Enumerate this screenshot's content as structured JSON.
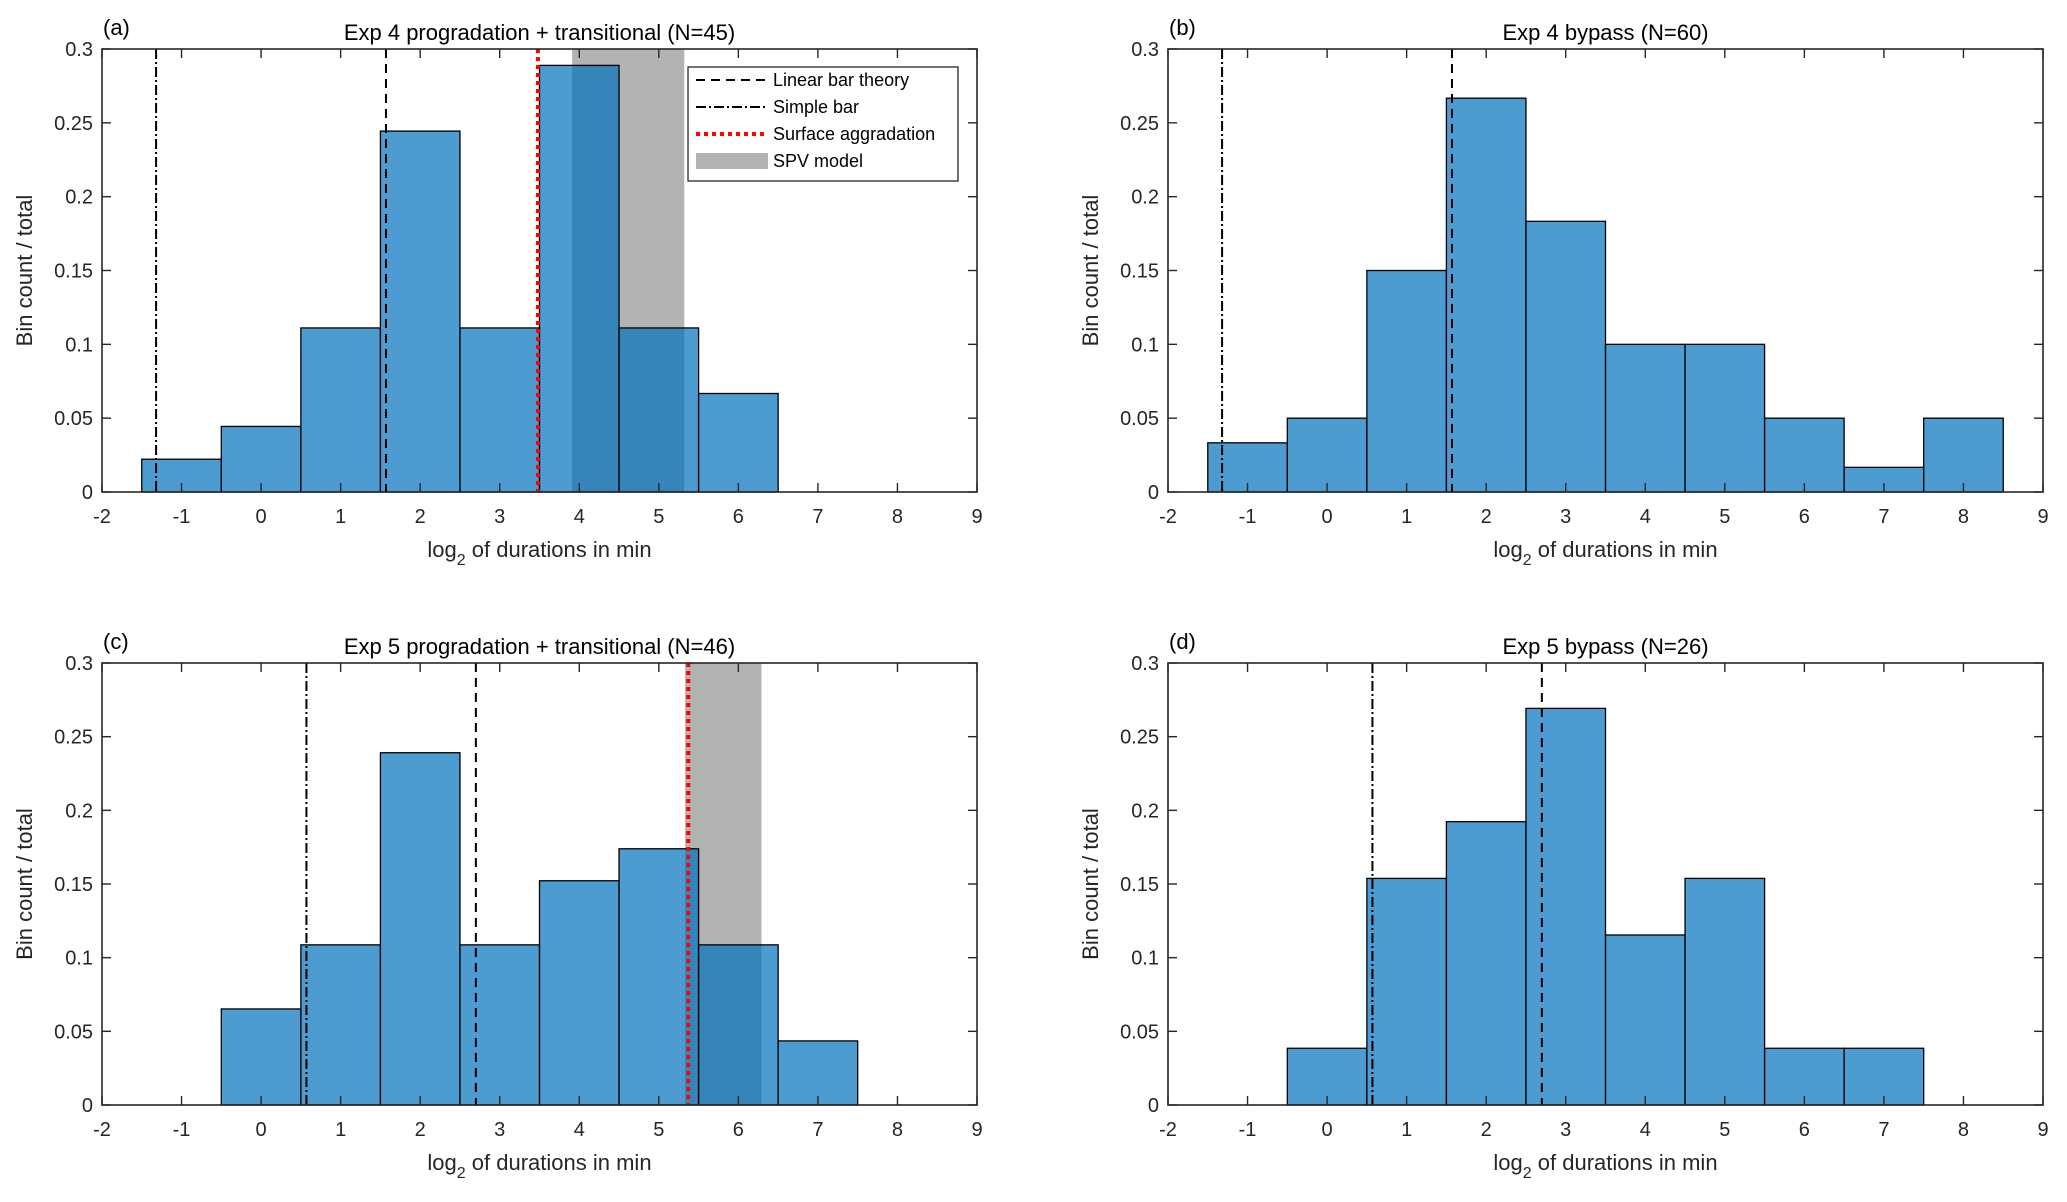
{
  "chart_data": [
    {
      "type": "bar",
      "panel_label": "(a)",
      "title": "Exp 4 progradation + transitional (N=45)",
      "xlabel_main": "log",
      "xlabel_sub": "2",
      "xlabel_rest": " of durations in min",
      "ylabel": "Bin count / total",
      "xlim": [
        -2,
        9
      ],
      "ylim": [
        0,
        0.3
      ],
      "xticks": [
        "-2",
        "-1",
        "0",
        "1",
        "2",
        "3",
        "4",
        "5",
        "6",
        "7",
        "8",
        "9"
      ],
      "yticks": [
        "0",
        "0.05",
        "0.1",
        "0.15",
        "0.2",
        "0.25",
        "0.3"
      ],
      "bin_width": 1,
      "bin_centers": [
        -1,
        0,
        1,
        2,
        3,
        4,
        5,
        6
      ],
      "values": [
        0.0222,
        0.0444,
        0.1111,
        0.2444,
        0.1111,
        0.2889,
        0.1111,
        0.0667
      ],
      "lines": {
        "linear_bar_theory": 1.57,
        "simple_bar": -1.32,
        "surface_aggradation": 3.48
      },
      "spv_band": [
        3.91,
        5.32
      ],
      "legend": {
        "position": "top-right",
        "entries": [
          "Linear bar theory",
          "Simple bar",
          "Surface aggradation",
          "SPV model"
        ]
      }
    },
    {
      "type": "bar",
      "panel_label": "(b)",
      "title": "Exp 4 bypass (N=60)",
      "xlabel_main": "log",
      "xlabel_sub": "2",
      "xlabel_rest": " of durations in min",
      "ylabel": "Bin count / total",
      "xlim": [
        -2,
        9
      ],
      "ylim": [
        0,
        0.3
      ],
      "xticks": [
        "-2",
        "-1",
        "0",
        "1",
        "2",
        "3",
        "4",
        "5",
        "6",
        "7",
        "8",
        "9"
      ],
      "yticks": [
        "0",
        "0.05",
        "0.1",
        "0.15",
        "0.2",
        "0.25",
        "0.3"
      ],
      "bin_width": 1,
      "bin_centers": [
        -1,
        0,
        1,
        2,
        3,
        4,
        5,
        6,
        7,
        8
      ],
      "values": [
        0.0333,
        0.05,
        0.15,
        0.2667,
        0.1833,
        0.1,
        0.1,
        0.05,
        0.0167,
        0.05
      ],
      "lines": {
        "linear_bar_theory": 1.57,
        "simple_bar": -1.32
      }
    },
    {
      "type": "bar",
      "panel_label": "(c)",
      "title": "Exp 5 progradation + transitional (N=46)",
      "xlabel_main": "log",
      "xlabel_sub": "2",
      "xlabel_rest": " of durations in min",
      "ylabel": "Bin count / total",
      "xlim": [
        -2,
        9
      ],
      "ylim": [
        0,
        0.3
      ],
      "xticks": [
        "-2",
        "-1",
        "0",
        "1",
        "2",
        "3",
        "4",
        "5",
        "6",
        "7",
        "8",
        "9"
      ],
      "yticks": [
        "0",
        "0.05",
        "0.1",
        "0.15",
        "0.2",
        "0.25",
        "0.3"
      ],
      "bin_width": 1,
      "bin_centers": [
        0,
        1,
        2,
        3,
        4,
        5,
        6,
        7
      ],
      "values": [
        0.0652,
        0.1087,
        0.2391,
        0.1087,
        0.1522,
        0.1739,
        0.1087,
        0.0435
      ],
      "lines": {
        "linear_bar_theory": 2.7,
        "simple_bar": 0.57,
        "surface_aggradation": 5.37
      },
      "spv_band": [
        5.33,
        6.29
      ]
    },
    {
      "type": "bar",
      "panel_label": "(d)",
      "title": "Exp 5 bypass (N=26)",
      "xlabel_main": "log",
      "xlabel_sub": "2",
      "xlabel_rest": " of durations in min",
      "ylabel": "Bin count / total",
      "xlim": [
        -2,
        9
      ],
      "ylim": [
        0,
        0.3
      ],
      "xticks": [
        "-2",
        "-1",
        "0",
        "1",
        "2",
        "3",
        "4",
        "5",
        "6",
        "7",
        "8",
        "9"
      ],
      "yticks": [
        "0",
        "0.05",
        "0.1",
        "0.15",
        "0.2",
        "0.25",
        "0.3"
      ],
      "bin_width": 1,
      "bin_centers": [
        0,
        1,
        2,
        3,
        4,
        5,
        6,
        7
      ],
      "values": [
        0.0385,
        0.1538,
        0.1923,
        0.2692,
        0.1154,
        0.1538,
        0.0385,
        0.0385
      ],
      "lines": {
        "linear_bar_theory": 2.7,
        "simple_bar": 0.57
      }
    }
  ],
  "colors": {
    "bar_fill": "#0072bd",
    "bar_edge": "#000000",
    "spv_band": "#b3b3b3",
    "surface_aggradation": "#ff0000",
    "reference_lines": "#000000",
    "axes": "#262626"
  }
}
